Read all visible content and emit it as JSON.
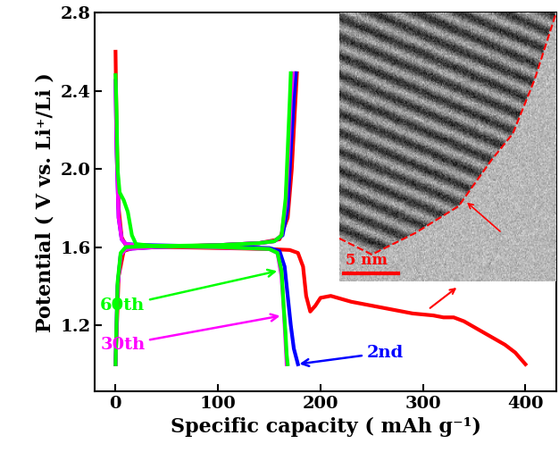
{
  "chart_data": {
    "type": "line",
    "x_label": "Specific capacity ( mAh g⁻¹)",
    "y_label": "Potential ( V vs. Li⁺/Li )",
    "xlim": [
      -20,
      430
    ],
    "ylim": [
      0.86,
      2.8
    ],
    "xticks": [
      0,
      100,
      200,
      300,
      400
    ],
    "yticks": [
      {
        "value": 1.2,
        "label": "1.2"
      },
      {
        "value": 1.6,
        "label": "1.6"
      },
      {
        "value": 2.0,
        "label": "2.0"
      },
      {
        "value": 2.4,
        "label": "2.4"
      },
      {
        "value": 2.8,
        "label": "2.8"
      }
    ],
    "grid": false,
    "annotations": [
      "5 nm"
    ],
    "series": [
      {
        "color": "#ff0000",
        "x": [
          0,
          1,
          3,
          6,
          10,
          20,
          50,
          100,
          150,
          170,
          178,
          183,
          186,
          190,
          195,
          200,
          210,
          230,
          260,
          290,
          310,
          320,
          330,
          340,
          350,
          360,
          370,
          380,
          390,
          400,
          null,
          0,
          3,
          8,
          20,
          60,
          100,
          140,
          160,
          168,
          172,
          175,
          177
        ],
        "values": [
          2.6,
          2.2,
          1.8,
          1.65,
          1.61,
          1.6,
          1.6,
          1.595,
          1.59,
          1.585,
          1.57,
          1.5,
          1.35,
          1.27,
          1.3,
          1.34,
          1.35,
          1.32,
          1.29,
          1.26,
          1.25,
          1.24,
          1.24,
          1.22,
          1.19,
          1.16,
          1.13,
          1.1,
          1.06,
          1.0,
          null,
          1.0,
          1.45,
          1.58,
          1.6,
          1.605,
          1.61,
          1.62,
          1.64,
          1.75,
          2.0,
          2.3,
          2.49
        ]
      },
      {
        "name": "2nd",
        "color": "#0000ff",
        "x": [
          0,
          1,
          3,
          6,
          10,
          30,
          80,
          120,
          150,
          160,
          165,
          168,
          171,
          174,
          178,
          null,
          0,
          2,
          5,
          10,
          40,
          100,
          140,
          155,
          163,
          168,
          171,
          174,
          176
        ],
        "values": [
          2.45,
          2.1,
          1.75,
          1.64,
          1.615,
          1.61,
          1.605,
          1.6,
          1.595,
          1.58,
          1.5,
          1.35,
          1.2,
          1.08,
          1.0,
          null,
          1.0,
          1.4,
          1.56,
          1.59,
          1.6,
          1.61,
          1.62,
          1.63,
          1.66,
          1.8,
          2.1,
          2.35,
          2.49
        ]
      },
      {
        "name": "30th",
        "color": "#ff00ff",
        "x": [
          0,
          1,
          3,
          6,
          10,
          30,
          80,
          120,
          150,
          158,
          162,
          164,
          166,
          167,
          null,
          0,
          2,
          5,
          10,
          40,
          100,
          140,
          155,
          162,
          166,
          169,
          171,
          173
        ],
        "values": [
          2.45,
          2.1,
          1.75,
          1.64,
          1.615,
          1.605,
          1.6,
          1.595,
          1.59,
          1.57,
          1.45,
          1.3,
          1.1,
          1.0,
          null,
          1.0,
          1.4,
          1.56,
          1.59,
          1.6,
          1.61,
          1.62,
          1.63,
          1.66,
          1.82,
          2.1,
          2.35,
          2.49
        ]
      },
      {
        "name": "60th",
        "color": "#00ff00",
        "x": [
          0,
          1,
          2,
          4,
          8,
          12,
          16,
          20,
          40,
          100,
          150,
          158,
          162,
          164,
          166,
          167,
          168,
          null,
          0,
          2,
          5,
          10,
          40,
          100,
          140,
          155,
          162,
          166,
          168,
          170,
          171
        ],
        "values": [
          2.48,
          2.3,
          2.0,
          1.88,
          1.84,
          1.78,
          1.66,
          1.615,
          1.605,
          1.6,
          1.59,
          1.57,
          1.48,
          1.3,
          1.15,
          1.05,
          1.0,
          null,
          1.0,
          1.42,
          1.57,
          1.6,
          1.605,
          1.61,
          1.62,
          1.63,
          1.66,
          1.85,
          2.1,
          2.35,
          2.49
        ]
      }
    ]
  }
}
